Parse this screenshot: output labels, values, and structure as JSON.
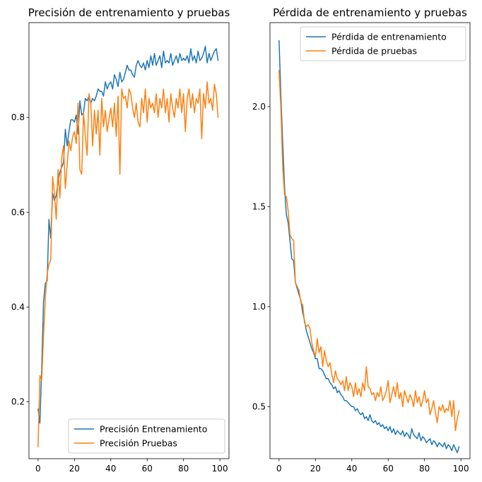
{
  "chart_data": [
    {
      "type": "line",
      "title": "Precisión de entrenamiento y pruebas",
      "xlabel": "",
      "ylabel": "",
      "xlim": [
        -5,
        105
      ],
      "ylim": [
        0.08,
        1.0
      ],
      "x_ticks": [
        0,
        20,
        40,
        60,
        80,
        100
      ],
      "y_ticks": [
        0.2,
        0.4,
        0.6,
        0.8
      ],
      "y_tick_decimals": 1,
      "grid": false,
      "legend_position": "lower-right",
      "series": [
        {
          "name": "Precisión Entrenamiento",
          "color": "#1f77b4",
          "x": [
            0,
            1,
            2,
            3,
            4,
            5,
            6,
            7,
            8,
            9,
            10,
            11,
            12,
            13,
            14,
            15,
            16,
            17,
            18,
            19,
            20,
            21,
            22,
            23,
            24,
            25,
            26,
            27,
            28,
            29,
            30,
            31,
            32,
            33,
            34,
            35,
            36,
            37,
            38,
            39,
            40,
            41,
            42,
            43,
            44,
            45,
            46,
            47,
            48,
            49,
            50,
            51,
            52,
            53,
            54,
            55,
            56,
            57,
            58,
            59,
            60,
            61,
            62,
            63,
            64,
            65,
            66,
            67,
            68,
            69,
            70,
            71,
            72,
            73,
            74,
            75,
            76,
            77,
            78,
            79,
            80,
            81,
            82,
            83,
            84,
            85,
            86,
            87,
            88,
            89,
            90,
            91,
            92,
            93,
            94,
            95,
            96,
            97,
            98,
            99
          ],
          "values": [
            0.185,
            0.155,
            0.27,
            0.41,
            0.45,
            0.455,
            0.585,
            0.545,
            0.64,
            0.625,
            0.635,
            0.665,
            0.685,
            0.695,
            0.705,
            0.775,
            0.74,
            0.77,
            0.795,
            0.795,
            0.79,
            0.805,
            0.765,
            0.835,
            0.805,
            0.81,
            0.84,
            0.835,
            0.845,
            0.83,
            0.84,
            0.835,
            0.845,
            0.86,
            0.855,
            0.855,
            0.845,
            0.875,
            0.86,
            0.87,
            0.875,
            0.86,
            0.89,
            0.88,
            0.865,
            0.895,
            0.875,
            0.88,
            0.895,
            0.91,
            0.9,
            0.9,
            0.89,
            0.885,
            0.91,
            0.92,
            0.91,
            0.905,
            0.915,
            0.9,
            0.92,
            0.905,
            0.93,
            0.91,
            0.935,
            0.91,
            0.92,
            0.93,
            0.905,
            0.94,
            0.915,
            0.92,
            0.915,
            0.935,
            0.91,
            0.92,
            0.93,
            0.915,
            0.935,
            0.92,
            0.925,
            0.92,
            0.93,
            0.915,
            0.945,
            0.92,
            0.93,
            0.915,
            0.94,
            0.92,
            0.925,
            0.935,
            0.95,
            0.915,
            0.935,
            0.92,
            0.93,
            0.94,
            0.945,
            0.92
          ]
        },
        {
          "name": "Precisión Pruebas",
          "color": "#ff7f0e",
          "x": [
            0,
            1,
            2,
            3,
            4,
            5,
            6,
            7,
            8,
            9,
            10,
            11,
            12,
            13,
            14,
            15,
            16,
            17,
            18,
            19,
            20,
            21,
            22,
            23,
            24,
            25,
            26,
            27,
            28,
            29,
            30,
            31,
            32,
            33,
            34,
            35,
            36,
            37,
            38,
            39,
            40,
            41,
            42,
            43,
            44,
            45,
            46,
            47,
            48,
            49,
            50,
            51,
            52,
            53,
            54,
            55,
            56,
            57,
            58,
            59,
            60,
            61,
            62,
            63,
            64,
            65,
            66,
            67,
            68,
            69,
            70,
            71,
            72,
            73,
            74,
            75,
            76,
            77,
            78,
            79,
            80,
            81,
            82,
            83,
            84,
            85,
            86,
            87,
            88,
            89,
            90,
            91,
            92,
            93,
            94,
            95,
            96,
            97,
            98,
            99
          ],
          "values": [
            0.105,
            0.255,
            0.245,
            0.34,
            0.42,
            0.47,
            0.49,
            0.5,
            0.675,
            0.64,
            0.585,
            0.69,
            0.63,
            0.715,
            0.74,
            0.65,
            0.7,
            0.75,
            0.73,
            0.76,
            0.77,
            0.745,
            0.83,
            0.69,
            0.68,
            0.81,
            0.76,
            0.72,
            0.85,
            0.83,
            0.74,
            0.815,
            0.765,
            0.815,
            0.72,
            0.84,
            0.78,
            0.815,
            0.77,
            0.795,
            0.82,
            0.78,
            0.83,
            0.76,
            0.845,
            0.68,
            0.86,
            0.84,
            0.845,
            0.82,
            0.86,
            0.85,
            0.82,
            0.8,
            0.83,
            0.79,
            0.78,
            0.84,
            0.81,
            0.86,
            0.79,
            0.84,
            0.82,
            0.83,
            0.81,
            0.85,
            0.8,
            0.84,
            0.82,
            0.86,
            0.81,
            0.84,
            0.79,
            0.85,
            0.82,
            0.8,
            0.84,
            0.82,
            0.86,
            0.81,
            0.85,
            0.77,
            0.84,
            0.86,
            0.82,
            0.85,
            0.81,
            0.84,
            0.83,
            0.86,
            0.755,
            0.85,
            0.82,
            0.875,
            0.83,
            0.84,
            0.815,
            0.87,
            0.85,
            0.8
          ]
        }
      ]
    },
    {
      "type": "line",
      "title": "Pérdida de entrenamiento y pruebas",
      "xlabel": "",
      "ylabel": "",
      "xlim": [
        -5,
        105
      ],
      "ylim": [
        0.24,
        2.42
      ],
      "x_ticks": [
        0,
        20,
        40,
        60,
        80,
        100
      ],
      "y_ticks": [
        0.5,
        1.0,
        1.5,
        2.0
      ],
      "y_tick_decimals": 1,
      "grid": false,
      "legend_position": "top-right",
      "series": [
        {
          "name": "Pérdida de entrenamiento",
          "color": "#1f77b4",
          "x": [
            0,
            1,
            2,
            3,
            4,
            5,
            6,
            7,
            8,
            9,
            10,
            11,
            12,
            13,
            14,
            15,
            16,
            17,
            18,
            19,
            20,
            21,
            22,
            23,
            24,
            25,
            26,
            27,
            28,
            29,
            30,
            31,
            32,
            33,
            34,
            35,
            36,
            37,
            38,
            39,
            40,
            41,
            42,
            43,
            44,
            45,
            46,
            47,
            48,
            49,
            50,
            51,
            52,
            53,
            54,
            55,
            56,
            57,
            58,
            59,
            60,
            61,
            62,
            63,
            64,
            65,
            66,
            67,
            68,
            69,
            70,
            71,
            72,
            73,
            74,
            75,
            76,
            77,
            78,
            79,
            80,
            81,
            82,
            83,
            84,
            85,
            86,
            87,
            88,
            89,
            90,
            91,
            92,
            93,
            94,
            95,
            96,
            97,
            98,
            99
          ],
          "values": [
            2.33,
            2.05,
            1.82,
            1.6,
            1.46,
            1.42,
            1.33,
            1.24,
            1.23,
            1.12,
            1.09,
            1.06,
            1.03,
            0.97,
            0.93,
            0.88,
            0.85,
            0.82,
            0.79,
            0.77,
            0.74,
            0.74,
            0.69,
            0.69,
            0.68,
            0.66,
            0.64,
            0.64,
            0.62,
            0.61,
            0.59,
            0.6,
            0.57,
            0.58,
            0.56,
            0.55,
            0.53,
            0.53,
            0.52,
            0.51,
            0.5,
            0.5,
            0.48,
            0.49,
            0.47,
            0.46,
            0.47,
            0.44,
            0.45,
            0.43,
            0.46,
            0.43,
            0.42,
            0.43,
            0.41,
            0.42,
            0.4,
            0.41,
            0.39,
            0.4,
            0.38,
            0.4,
            0.37,
            0.39,
            0.36,
            0.38,
            0.37,
            0.36,
            0.38,
            0.35,
            0.37,
            0.36,
            0.34,
            0.39,
            0.36,
            0.35,
            0.34,
            0.37,
            0.33,
            0.35,
            0.34,
            0.32,
            0.33,
            0.34,
            0.31,
            0.33,
            0.32,
            0.3,
            0.32,
            0.31,
            0.3,
            0.32,
            0.29,
            0.31,
            0.3,
            0.28,
            0.31,
            0.29,
            0.27,
            0.3
          ]
        },
        {
          "name": "Pérdida de pruebas",
          "color": "#ff7f0e",
          "x": [
            0,
            1,
            2,
            3,
            4,
            5,
            6,
            7,
            8,
            9,
            10,
            11,
            12,
            13,
            14,
            15,
            16,
            17,
            18,
            19,
            20,
            21,
            22,
            23,
            24,
            25,
            26,
            27,
            28,
            29,
            30,
            31,
            32,
            33,
            34,
            35,
            36,
            37,
            38,
            39,
            40,
            41,
            42,
            43,
            44,
            45,
            46,
            47,
            48,
            49,
            50,
            51,
            52,
            53,
            54,
            55,
            56,
            57,
            58,
            59,
            60,
            61,
            62,
            63,
            64,
            65,
            66,
            67,
            68,
            69,
            70,
            71,
            72,
            73,
            74,
            75,
            76,
            77,
            78,
            79,
            80,
            81,
            82,
            83,
            84,
            85,
            86,
            87,
            88,
            89,
            90,
            91,
            92,
            93,
            94,
            95,
            96,
            97,
            98,
            99
          ],
          "values": [
            2.18,
            1.99,
            1.7,
            1.56,
            1.55,
            1.48,
            1.36,
            1.34,
            1.33,
            1.12,
            1.1,
            1.08,
            1.02,
            1.01,
            0.92,
            0.9,
            0.91,
            0.89,
            0.82,
            0.78,
            0.75,
            0.84,
            0.77,
            0.8,
            0.7,
            0.78,
            0.73,
            0.7,
            0.72,
            0.66,
            0.62,
            0.68,
            0.64,
            0.63,
            0.61,
            0.63,
            0.58,
            0.65,
            0.58,
            0.62,
            0.6,
            0.55,
            0.62,
            0.56,
            0.59,
            0.55,
            0.62,
            0.58,
            0.7,
            0.6,
            0.59,
            0.56,
            0.57,
            0.53,
            0.57,
            0.55,
            0.6,
            0.53,
            0.55,
            0.58,
            0.63,
            0.52,
            0.56,
            0.6,
            0.55,
            0.62,
            0.54,
            0.57,
            0.5,
            0.58,
            0.55,
            0.52,
            0.56,
            0.54,
            0.5,
            0.58,
            0.52,
            0.55,
            0.5,
            0.53,
            0.58,
            0.52,
            0.54,
            0.46,
            0.49,
            0.53,
            0.47,
            0.42,
            0.5,
            0.48,
            0.51,
            0.47,
            0.49,
            0.48,
            0.53,
            0.45,
            0.53,
            0.38,
            0.44,
            0.48
          ]
        }
      ]
    }
  ]
}
